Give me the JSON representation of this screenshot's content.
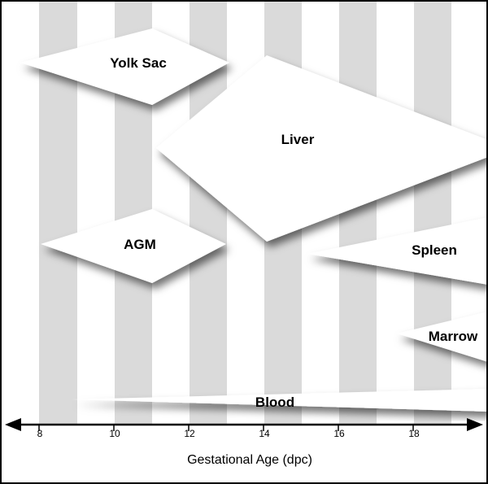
{
  "chart_data": {
    "type": "timeline",
    "xlabel": "Gestational Age (dpc)",
    "x_ticks": [
      "8",
      "10",
      "12",
      "14",
      "16",
      "18"
    ],
    "xlim": [
      7.5,
      20
    ],
    "organs": [
      {
        "name": "Yolk Sac",
        "start": 7.5,
        "peak": 11,
        "end": 13
      },
      {
        "name": "Liver",
        "start": 10.5,
        "peak": 14,
        "end": 20
      },
      {
        "name": "AGM",
        "start": 8.5,
        "peak": 11,
        "end": 13
      },
      {
        "name": "Spleen",
        "start": 15,
        "peak": 20,
        "end": 20
      },
      {
        "name": "Marrow",
        "start": 17.5,
        "peak": 20,
        "end": 20
      },
      {
        "name": "Blood",
        "start": 9,
        "peak": 20,
        "end": 20
      }
    ],
    "colors": {
      "stripe": "#dadada",
      "shape": "#ffffff",
      "axis": "#000000"
    }
  }
}
